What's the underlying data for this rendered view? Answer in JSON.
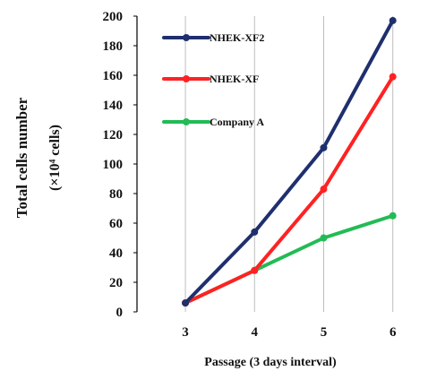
{
  "chart_data": {
    "type": "line",
    "title": "",
    "xlabel": "Passage (3 days interval)",
    "ylabel_line1": "Total cells number",
    "ylabel_line2": "(×10⁴ cells)",
    "x": [
      3,
      4,
      5,
      6
    ],
    "x_ticks": [
      "3",
      "4",
      "5",
      "6"
    ],
    "xlim": [
      2.3,
      6.25
    ],
    "ylim": [
      0,
      200
    ],
    "y_ticks": [
      "0",
      "20",
      "40",
      "60",
      "80",
      "100",
      "120",
      "140",
      "160",
      "180",
      "200"
    ],
    "grid": "vertical",
    "legend_position": "top-left",
    "series": [
      {
        "name": "NHEK-XF2",
        "color": "#1f2f6e",
        "values": [
          6,
          54,
          111,
          197
        ]
      },
      {
        "name": "NHEK-XF",
        "color": "#ff2222",
        "values": [
          6,
          28,
          83,
          159
        ]
      },
      {
        "name": "Company A",
        "color": "#22bb55",
        "values": [
          6,
          28,
          50,
          65
        ]
      }
    ]
  }
}
